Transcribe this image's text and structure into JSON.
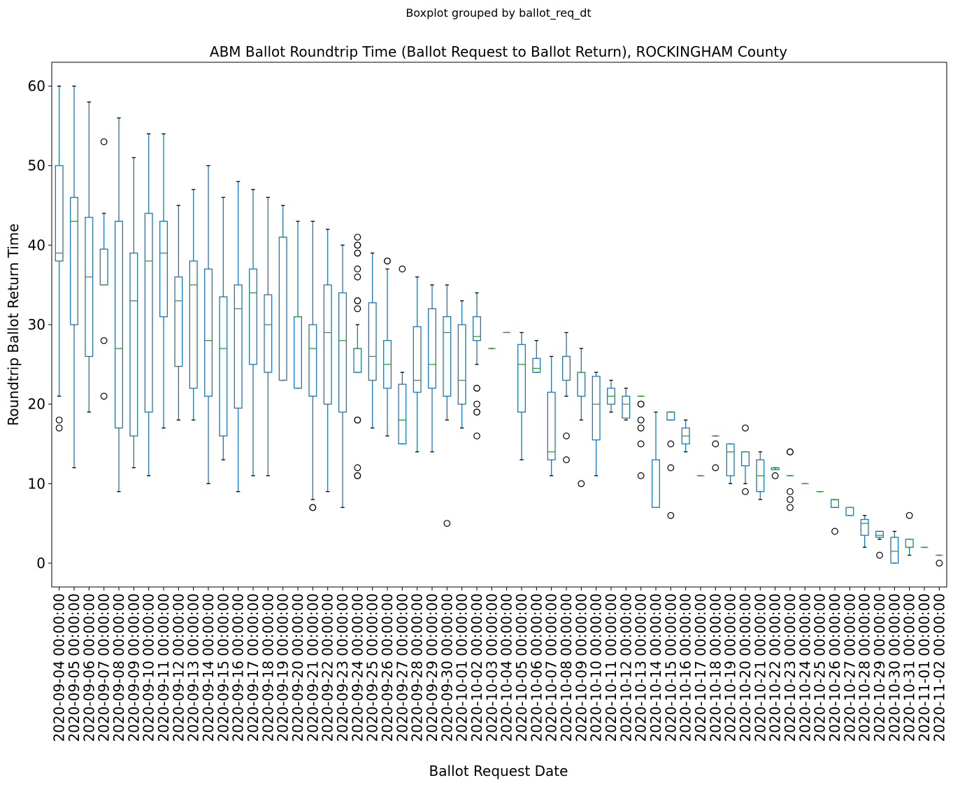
{
  "chart_data": {
    "type": "box",
    "suptitle": "Boxplot grouped by ballot_req_dt",
    "title": "ABM Ballot Roundtrip Time (Ballot Request to Ballot Return), ROCKINGHAM County",
    "xlabel": "Ballot Request Date",
    "ylabel": "Roundtrip Ballot Return Time",
    "ylim": [
      -3,
      63
    ],
    "yticks": [
      0,
      10,
      20,
      30,
      40,
      50,
      60
    ],
    "grid": false,
    "colors": {
      "box": "#1f77b4",
      "median": "#2ca02c",
      "flier": "#000000",
      "axes": "#000000"
    },
    "categories": [
      "2020-09-04 00:00:00",
      "2020-09-05 00:00:00",
      "2020-09-06 00:00:00",
      "2020-09-07 00:00:00",
      "2020-09-08 00:00:00",
      "2020-09-09 00:00:00",
      "2020-09-10 00:00:00",
      "2020-09-11 00:00:00",
      "2020-09-12 00:00:00",
      "2020-09-13 00:00:00",
      "2020-09-14 00:00:00",
      "2020-09-15 00:00:00",
      "2020-09-16 00:00:00",
      "2020-09-17 00:00:00",
      "2020-09-18 00:00:00",
      "2020-09-19 00:00:00",
      "2020-09-20 00:00:00",
      "2020-09-21 00:00:00",
      "2020-09-22 00:00:00",
      "2020-09-23 00:00:00",
      "2020-09-24 00:00:00",
      "2020-09-25 00:00:00",
      "2020-09-26 00:00:00",
      "2020-09-27 00:00:00",
      "2020-09-28 00:00:00",
      "2020-09-29 00:00:00",
      "2020-09-30 00:00:00",
      "2020-10-01 00:00:00",
      "2020-10-02 00:00:00",
      "2020-10-03 00:00:00",
      "2020-10-04 00:00:00",
      "2020-10-05 00:00:00",
      "2020-10-06 00:00:00",
      "2020-10-07 00:00:00",
      "2020-10-08 00:00:00",
      "2020-10-09 00:00:00",
      "2020-10-10 00:00:00",
      "2020-10-11 00:00:00",
      "2020-10-12 00:00:00",
      "2020-10-13 00:00:00",
      "2020-10-14 00:00:00",
      "2020-10-15 00:00:00",
      "2020-10-16 00:00:00",
      "2020-10-17 00:00:00",
      "2020-10-18 00:00:00",
      "2020-10-19 00:00:00",
      "2020-10-20 00:00:00",
      "2020-10-21 00:00:00",
      "2020-10-22 00:00:00",
      "2020-10-23 00:00:00",
      "2020-10-24 00:00:00",
      "2020-10-25 00:00:00",
      "2020-10-26 00:00:00",
      "2020-10-27 00:00:00",
      "2020-10-28 00:00:00",
      "2020-10-29 00:00:00",
      "2020-10-30 00:00:00",
      "2020-10-31 00:00:00",
      "2020-11-01 00:00:00",
      "2020-11-02 00:00:00"
    ],
    "boxes": [
      {
        "wlo": 21,
        "q1": 38,
        "med": 39,
        "q3": 50,
        "whi": 60,
        "fliers": [
          17,
          18
        ]
      },
      {
        "wlo": 12,
        "q1": 30,
        "med": 43,
        "q3": 46,
        "whi": 60,
        "fliers": []
      },
      {
        "wlo": 19,
        "q1": 26,
        "med": 36,
        "q3": 43.5,
        "whi": 58,
        "fliers": []
      },
      {
        "wlo": 35,
        "q1": 35,
        "med": 35,
        "q3": 39.5,
        "whi": 44,
        "fliers": [
          21,
          28,
          53
        ]
      },
      {
        "wlo": 9,
        "q1": 17,
        "med": 27,
        "q3": 43,
        "whi": 56,
        "fliers": []
      },
      {
        "wlo": 12,
        "q1": 16,
        "med": 33,
        "q3": 39,
        "whi": 51,
        "fliers": []
      },
      {
        "wlo": 11,
        "q1": 19,
        "med": 38,
        "q3": 44,
        "whi": 54,
        "fliers": []
      },
      {
        "wlo": 17,
        "q1": 31,
        "med": 39,
        "q3": 43,
        "whi": 54,
        "fliers": []
      },
      {
        "wlo": 18,
        "q1": 24.75,
        "med": 33,
        "q3": 36,
        "whi": 45,
        "fliers": []
      },
      {
        "wlo": 18,
        "q1": 22,
        "med": 35,
        "q3": 38,
        "whi": 47,
        "fliers": []
      },
      {
        "wlo": 10,
        "q1": 21,
        "med": 28,
        "q3": 37,
        "whi": 50,
        "fliers": []
      },
      {
        "wlo": 13,
        "q1": 16,
        "med": 27,
        "q3": 33.5,
        "whi": 46,
        "fliers": []
      },
      {
        "wlo": 9,
        "q1": 19.5,
        "med": 32,
        "q3": 35,
        "whi": 48,
        "fliers": []
      },
      {
        "wlo": 11,
        "q1": 25,
        "med": 34,
        "q3": 37,
        "whi": 47,
        "fliers": []
      },
      {
        "wlo": 11,
        "q1": 24,
        "med": 30,
        "q3": 33.75,
        "whi": 46,
        "fliers": []
      },
      {
        "wlo": 23,
        "q1": 23,
        "med": 41,
        "q3": 41,
        "whi": 45,
        "fliers": []
      },
      {
        "wlo": 22,
        "q1": 22,
        "med": 31,
        "q3": 31,
        "whi": 43,
        "fliers": []
      },
      {
        "wlo": 8,
        "q1": 21,
        "med": 27,
        "q3": 30,
        "whi": 43,
        "fliers": [
          7,
          7
        ]
      },
      {
        "wlo": 9,
        "q1": 20,
        "med": 29,
        "q3": 35,
        "whi": 42,
        "fliers": []
      },
      {
        "wlo": 7,
        "q1": 19,
        "med": 28,
        "q3": 34,
        "whi": 40,
        "fliers": []
      },
      {
        "wlo": 24,
        "q1": 24,
        "med": 27,
        "q3": 27,
        "whi": 30,
        "fliers": [
          11,
          11,
          12,
          18,
          18,
          32,
          33,
          33,
          36,
          37,
          39,
          39,
          40,
          40,
          41
        ]
      },
      {
        "wlo": 17,
        "q1": 23,
        "med": 26,
        "q3": 32.75,
        "whi": 39,
        "fliers": []
      },
      {
        "wlo": 16,
        "q1": 22,
        "med": 25,
        "q3": 28,
        "whi": 37,
        "fliers": [
          38,
          38
        ]
      },
      {
        "wlo": 15,
        "q1": 15,
        "med": 18,
        "q3": 22.5,
        "whi": 24,
        "fliers": [
          37
        ]
      },
      {
        "wlo": 14,
        "q1": 21.5,
        "med": 23,
        "q3": 29.75,
        "whi": 36,
        "fliers": []
      },
      {
        "wlo": 14,
        "q1": 22,
        "med": 25,
        "q3": 32,
        "whi": 35,
        "fliers": []
      },
      {
        "wlo": 18,
        "q1": 21,
        "med": 29,
        "q3": 31,
        "whi": 35,
        "fliers": [
          5
        ]
      },
      {
        "wlo": 17,
        "q1": 20,
        "med": 23,
        "q3": 30,
        "whi": 33,
        "fliers": []
      },
      {
        "wlo": 25,
        "q1": 28,
        "med": 28.5,
        "q3": 31,
        "whi": 34,
        "fliers": [
          16,
          19,
          19,
          20,
          22,
          22
        ]
      },
      {
        "wlo": 27,
        "q1": 27,
        "med": 27,
        "q3": 27,
        "whi": 27,
        "fliers": []
      },
      {
        "wlo": 29,
        "q1": 29,
        "med": 29,
        "q3": 29,
        "whi": 29,
        "fliers": []
      },
      {
        "wlo": 13,
        "q1": 19,
        "med": 25,
        "q3": 27.5,
        "whi": 29,
        "fliers": []
      },
      {
        "wlo": 24,
        "q1": 24,
        "med": 24.5,
        "q3": 25.75,
        "whi": 28,
        "fliers": []
      },
      {
        "wlo": 11,
        "q1": 13,
        "med": 14,
        "q3": 21.5,
        "whi": 26,
        "fliers": []
      },
      {
        "wlo": 21,
        "q1": 23,
        "med": 26,
        "q3": 26,
        "whi": 29,
        "fliers": [
          13,
          16
        ]
      },
      {
        "wlo": 18,
        "q1": 21,
        "med": 24,
        "q3": 24,
        "whi": 27,
        "fliers": [
          10
        ]
      },
      {
        "wlo": 11,
        "q1": 15.5,
        "med": 20,
        "q3": 23.5,
        "whi": 24,
        "fliers": []
      },
      {
        "wlo": 19,
        "q1": 20,
        "med": 21,
        "q3": 22,
        "whi": 23,
        "fliers": []
      },
      {
        "wlo": 18,
        "q1": 18.25,
        "med": 20,
        "q3": 21,
        "whi": 22,
        "fliers": []
      },
      {
        "wlo": 21,
        "q1": 21,
        "med": 21,
        "q3": 21,
        "whi": 21,
        "fliers": [
          11,
          15,
          17,
          18,
          20,
          20
        ]
      },
      {
        "wlo": 7,
        "q1": 7,
        "med": 7,
        "q3": 13,
        "whi": 19,
        "fliers": []
      },
      {
        "wlo": 18,
        "q1": 18,
        "med": 19,
        "q3": 19,
        "whi": 19,
        "fliers": [
          6,
          12,
          15
        ]
      },
      {
        "wlo": 14,
        "q1": 15,
        "med": 16,
        "q3": 17,
        "whi": 18,
        "fliers": []
      },
      {
        "wlo": 11,
        "q1": 11,
        "med": 11,
        "q3": 11,
        "whi": 11,
        "fliers": []
      },
      {
        "wlo": 16,
        "q1": 16,
        "med": 16,
        "q3": 16,
        "whi": 16,
        "fliers": [
          12,
          15
        ]
      },
      {
        "wlo": 10,
        "q1": 11,
        "med": 14,
        "q3": 15,
        "whi": 15,
        "fliers": []
      },
      {
        "wlo": 10,
        "q1": 12.25,
        "med": 14,
        "q3": 14,
        "whi": 14,
        "fliers": [
          9,
          17
        ]
      },
      {
        "wlo": 8,
        "q1": 9,
        "med": 11,
        "q3": 13,
        "whi": 14,
        "fliers": []
      },
      {
        "wlo": 12,
        "q1": 11.75,
        "med": 12,
        "q3": 12,
        "whi": 12,
        "fliers": [
          11
        ]
      },
      {
        "wlo": 11,
        "q1": 11,
        "med": 11,
        "q3": 11,
        "whi": 11,
        "fliers": [
          7,
          8,
          9,
          14,
          14
        ]
      },
      {
        "wlo": 10,
        "q1": 10,
        "med": 10,
        "q3": 10,
        "whi": 10,
        "fliers": []
      },
      {
        "wlo": 9,
        "q1": 9,
        "med": 9,
        "q3": 9,
        "whi": 9,
        "fliers": []
      },
      {
        "wlo": 7,
        "q1": 7,
        "med": 8,
        "q3": 8,
        "whi": 8,
        "fliers": [
          4
        ]
      },
      {
        "wlo": 6,
        "q1": 6,
        "med": 7,
        "q3": 7,
        "whi": 7,
        "fliers": []
      },
      {
        "wlo": 2,
        "q1": 3.5,
        "med": 5,
        "q3": 5.5,
        "whi": 6,
        "fliers": []
      },
      {
        "wlo": 3,
        "q1": 3.25,
        "med": 3.5,
        "q3": 4,
        "whi": 4,
        "fliers": [
          1
        ]
      },
      {
        "wlo": 0,
        "q1": 0,
        "med": 1.5,
        "q3": 3.25,
        "whi": 4,
        "fliers": []
      },
      {
        "wlo": 1,
        "q1": 2,
        "med": 2,
        "q3": 3,
        "whi": 3,
        "fliers": [
          6
        ]
      },
      {
        "wlo": 2,
        "q1": 2,
        "med": 2,
        "q3": 2,
        "whi": 2,
        "fliers": []
      },
      {
        "wlo": 1,
        "q1": 1,
        "med": 1,
        "q3": 1,
        "whi": 1,
        "fliers": [
          0
        ]
      }
    ]
  }
}
